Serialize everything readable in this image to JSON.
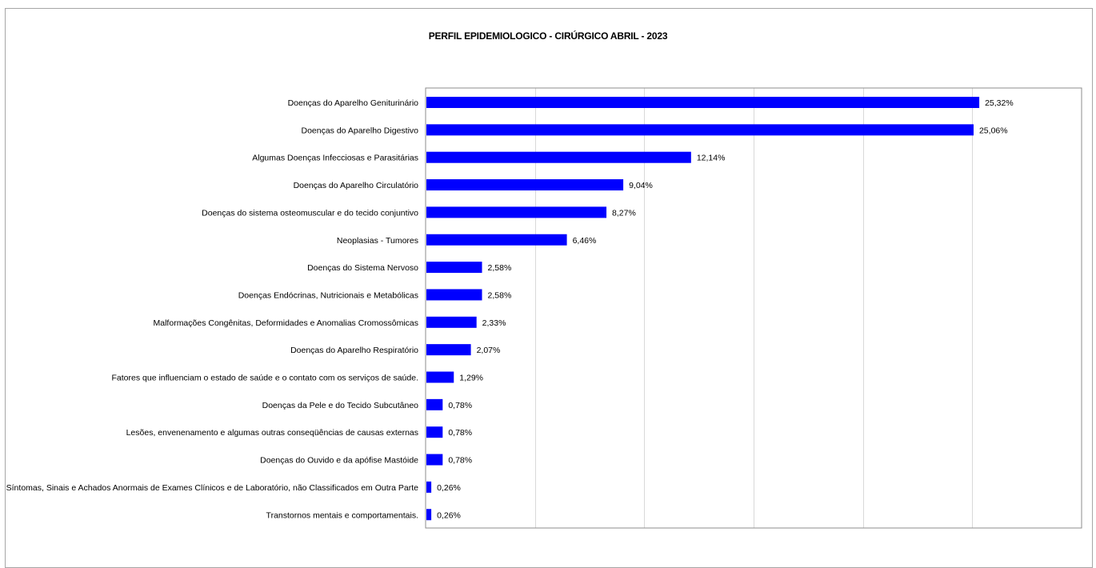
{
  "chart_data": {
    "type": "bar",
    "orientation": "horizontal",
    "title": "PERFIL EPIDEMIOLOGICO - CIRÚRGICO ABRIL - 2023",
    "xlabel": "",
    "ylabel": "",
    "xlim": [
      0,
      30
    ],
    "grid": true,
    "legend": "none",
    "bar_color": "#0000ff",
    "grid_color": "#d9d9d9",
    "categories": [
      "Doenças do Aparelho Geniturinário",
      "Doenças do Aparelho Digestivo",
      "Algumas Doenças Infecciosas e Parasitárias",
      "Doenças do Aparelho Circulatório",
      "Doenças do sistema osteomuscular e do tecido conjuntivo",
      "Neoplasias - Tumores",
      "Doenças do Sistema Nervoso",
      "Doenças Endócrinas, Nutricionais e Metabólicas",
      "Malformações Congênitas, Deformidades e Anomalias Cromossômicas",
      "Doenças do Aparelho Respiratório",
      "Fatores que influenciam o estado de saúde e o contato com os serviços de saúde.",
      "Doenças da Pele e do Tecido Subcutâneo",
      "Lesões, envenenamento e algumas outras conseqüências de causas externas",
      "Doenças do Ouvido e da apófise Mastóide",
      "Síntomas, Sinais e Achados Anormais de Exames Clínicos e de Laboratório, não Classificados em Outra Parte",
      "Transtornos mentais e comportamentais."
    ],
    "values": [
      25.32,
      25.06,
      12.14,
      9.04,
      8.27,
      6.46,
      2.58,
      2.58,
      2.33,
      2.07,
      1.29,
      0.78,
      0.78,
      0.78,
      0.26,
      0.26
    ],
    "value_labels": [
      "25,32%",
      "25,06%",
      "12,14%",
      "9,04%",
      "8,27%",
      "6,46%",
      "2,58%",
      "2,58%",
      "2,33%",
      "2,07%",
      "1,29%",
      "0,78%",
      "0,78%",
      "0,78%",
      "0,26%",
      "0,26%"
    ]
  }
}
